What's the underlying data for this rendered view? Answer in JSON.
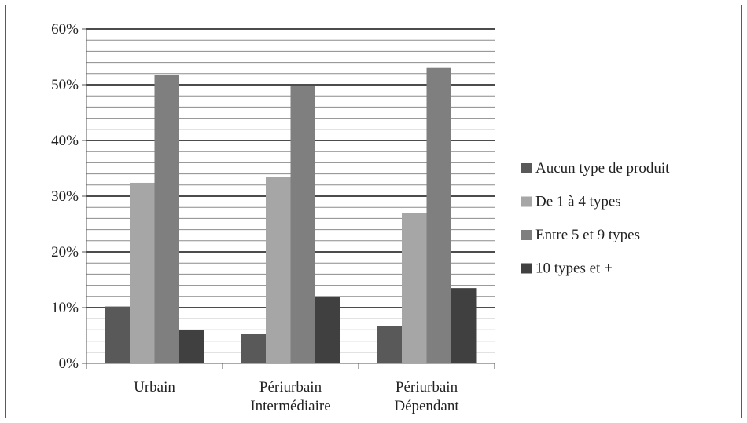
{
  "chart_data": {
    "type": "bar",
    "title": "",
    "xlabel": "",
    "ylabel": "",
    "categories": [
      [
        "Urbain"
      ],
      [
        "Périurbain",
        "Intermédiaire"
      ],
      [
        "Périurbain",
        "Dépendant"
      ]
    ],
    "series": [
      {
        "name": "Aucun type de produit",
        "color": "#595959",
        "values": [
          10.2,
          5.3,
          6.7
        ]
      },
      {
        "name": "De 1 à 4 types",
        "color": "#a6a6a6",
        "values": [
          32.4,
          33.4,
          27.0
        ]
      },
      {
        "name": "Entre 5 et 9 types",
        "color": "#7f7f7f",
        "values": [
          51.8,
          49.8,
          53.0
        ]
      },
      {
        "name": "10 types et +",
        "color": "#404040",
        "values": [
          6.0,
          11.9,
          13.5
        ]
      }
    ],
    "ylim": [
      0,
      60
    ],
    "yticks": [
      0,
      10,
      20,
      30,
      40,
      50,
      60
    ],
    "ytick_labels": [
      "0%",
      "10%",
      "20%",
      "30%",
      "40%",
      "50%",
      "60%"
    ],
    "minor_grid_step": 2,
    "grid": true,
    "legend_position": "right"
  }
}
